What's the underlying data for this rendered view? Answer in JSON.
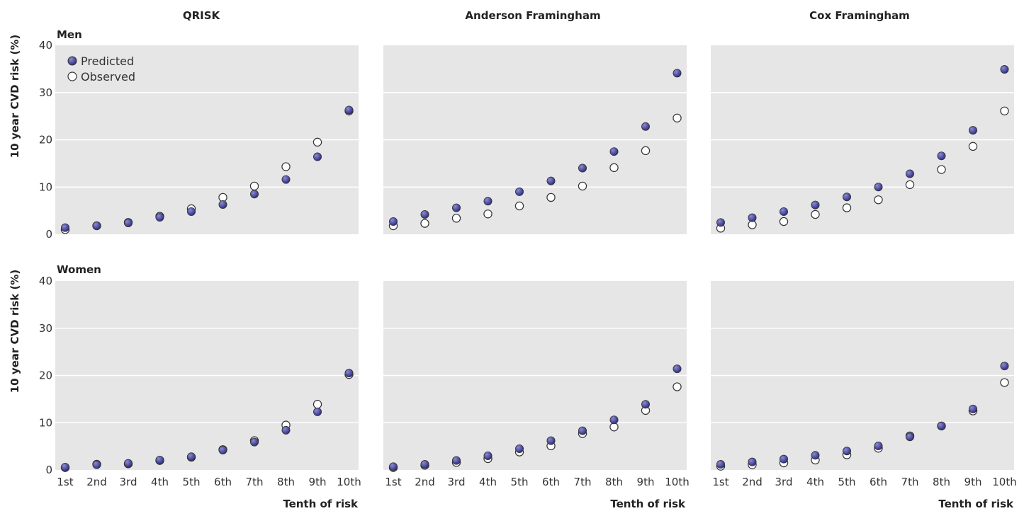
{
  "colors": {
    "panel_bg": "#e6e6e6",
    "grid": "#ffffff",
    "predicted_fill": "#2e2e7e",
    "predicted_highlight": "#8a8ad8",
    "observed_fill": "#ffffff",
    "marker_stroke": "#333333"
  },
  "columns": [
    "QRISK",
    "Anderson Framingham",
    "Cox Framingham"
  ],
  "rows": [
    "Men",
    "Women"
  ],
  "ylabel": "10 year CVD risk (%)",
  "xlabel": "Tenth of risk",
  "legend": {
    "position": "top-left",
    "predicted": "Predicted",
    "observed": "Observed"
  },
  "chart_data": [
    {
      "type": "scatter",
      "title": "QRISK",
      "row": "Men",
      "categories": [
        "1st",
        "2nd",
        "3rd",
        "4th",
        "5th",
        "6th",
        "7th",
        "8th",
        "9th",
        "10th"
      ],
      "ylim": [
        0,
        40
      ],
      "yticks": [
        0,
        10,
        20,
        30,
        40
      ],
      "grid": true,
      "series": [
        {
          "name": "Predicted",
          "values": [
            1.4,
            1.8,
            2.4,
            3.6,
            4.8,
            6.3,
            8.5,
            11.6,
            16.4,
            26.3
          ]
        },
        {
          "name": "Observed",
          "values": [
            1.0,
            1.8,
            2.5,
            3.8,
            5.4,
            7.8,
            10.2,
            14.3,
            19.5,
            26.1
          ]
        }
      ]
    },
    {
      "type": "scatter",
      "title": "Anderson Framingham",
      "row": "Men",
      "categories": [
        "1st",
        "2nd",
        "3rd",
        "4th",
        "5th",
        "6th",
        "7th",
        "8th",
        "9th",
        "10th"
      ],
      "ylim": [
        0,
        40
      ],
      "yticks": [
        0,
        10,
        20,
        30,
        40
      ],
      "grid": true,
      "series": [
        {
          "name": "Predicted",
          "values": [
            2.7,
            4.2,
            5.6,
            7.0,
            9.0,
            11.3,
            14.0,
            17.5,
            22.8,
            34.1
          ]
        },
        {
          "name": "Observed",
          "values": [
            1.8,
            2.3,
            3.4,
            4.3,
            6.0,
            7.8,
            10.2,
            14.1,
            17.7,
            24.6
          ]
        }
      ]
    },
    {
      "type": "scatter",
      "title": "Cox Framingham",
      "row": "Men",
      "categories": [
        "1st",
        "2nd",
        "3rd",
        "4th",
        "5th",
        "6th",
        "7th",
        "8th",
        "9th",
        "10th"
      ],
      "ylim": [
        0,
        40
      ],
      "yticks": [
        0,
        10,
        20,
        30,
        40
      ],
      "grid": true,
      "series": [
        {
          "name": "Predicted",
          "values": [
            2.5,
            3.5,
            4.8,
            6.2,
            7.9,
            10.0,
            12.8,
            16.6,
            22.0,
            34.9
          ]
        },
        {
          "name": "Observed",
          "values": [
            1.3,
            2.0,
            2.7,
            4.2,
            5.6,
            7.3,
            10.5,
            13.7,
            18.6,
            26.1
          ]
        }
      ]
    },
    {
      "type": "scatter",
      "title": "QRISK",
      "row": "Women",
      "categories": [
        "1st",
        "2nd",
        "3rd",
        "4th",
        "5th",
        "6th",
        "7th",
        "8th",
        "9th",
        "10th"
      ],
      "ylim": [
        0,
        40
      ],
      "yticks": [
        0,
        10,
        20,
        30,
        40
      ],
      "grid": true,
      "series": [
        {
          "name": "Predicted",
          "values": [
            0.6,
            1.1,
            1.4,
            2.1,
            2.8,
            4.2,
            5.9,
            8.4,
            12.3,
            20.5
          ]
        },
        {
          "name": "Observed",
          "values": [
            0.5,
            1.2,
            1.3,
            2.0,
            2.7,
            4.3,
            6.2,
            9.5,
            13.9,
            20.2
          ]
        }
      ]
    },
    {
      "type": "scatter",
      "title": "Anderson Framingham",
      "row": "Women",
      "categories": [
        "1st",
        "2nd",
        "3rd",
        "4th",
        "5th",
        "6th",
        "7th",
        "8th",
        "9th",
        "10th"
      ],
      "ylim": [
        0,
        40
      ],
      "yticks": [
        0,
        10,
        20,
        30,
        40
      ],
      "grid": true,
      "series": [
        {
          "name": "Predicted",
          "values": [
            0.7,
            1.2,
            2.0,
            3.0,
            4.5,
            6.2,
            8.3,
            10.6,
            13.9,
            21.4
          ]
        },
        {
          "name": "Observed",
          "values": [
            0.5,
            1.0,
            1.6,
            2.4,
            3.8,
            5.1,
            7.7,
            9.1,
            12.6,
            17.6
          ]
        }
      ]
    },
    {
      "type": "scatter",
      "title": "Cox Framingham",
      "row": "Women",
      "categories": [
        "1st",
        "2nd",
        "3rd",
        "4th",
        "5th",
        "6th",
        "7th",
        "8th",
        "9th",
        "10th"
      ],
      "ylim": [
        0,
        40
      ],
      "yticks": [
        0,
        10,
        20,
        30,
        40
      ],
      "grid": true,
      "series": [
        {
          "name": "Predicted",
          "values": [
            1.2,
            1.7,
            2.3,
            3.1,
            4.0,
            5.1,
            7.0,
            9.3,
            12.9,
            22.0
          ]
        },
        {
          "name": "Observed",
          "values": [
            0.8,
            1.1,
            1.5,
            2.1,
            3.2,
            4.6,
            7.2,
            9.3,
            12.5,
            18.5
          ]
        }
      ]
    }
  ]
}
